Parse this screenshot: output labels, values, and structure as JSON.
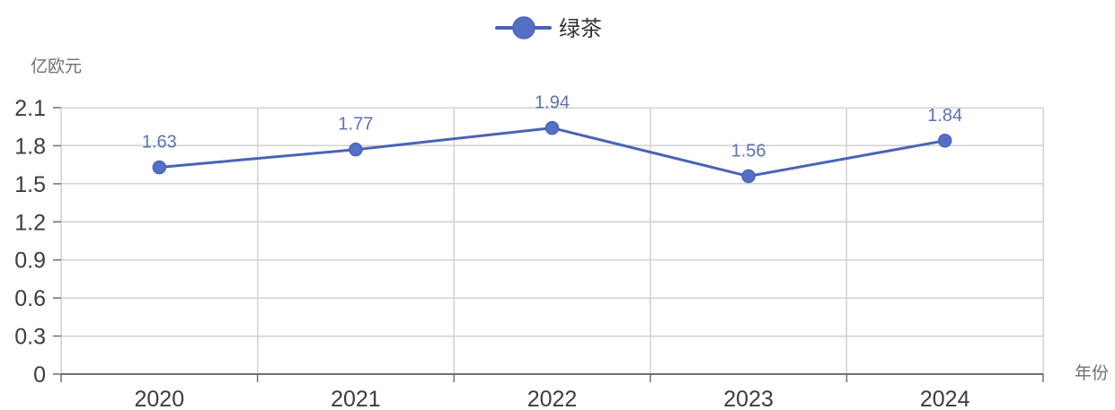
{
  "colors": {
    "series": "#5470c6",
    "series_line": "#4a63b8",
    "data_label": "#5b72b5",
    "grid": "#d2d2d2",
    "axis": "#6e7079"
  },
  "chart_data": {
    "type": "line",
    "categories": [
      "2020",
      "2021",
      "2022",
      "2023",
      "2024"
    ],
    "series": [
      {
        "name": "绿茶",
        "values": [
          1.63,
          1.77,
          1.94,
          1.56,
          1.84
        ]
      }
    ],
    "xlabel": "年份",
    "ylabel": "亿欧元",
    "ylim": [
      0,
      2.1
    ],
    "yticks": [
      0,
      0.3,
      0.6,
      0.9,
      1.2,
      1.5,
      1.8,
      2.1
    ],
    "data_labels": true,
    "grid": true,
    "legend": "top-center"
  }
}
